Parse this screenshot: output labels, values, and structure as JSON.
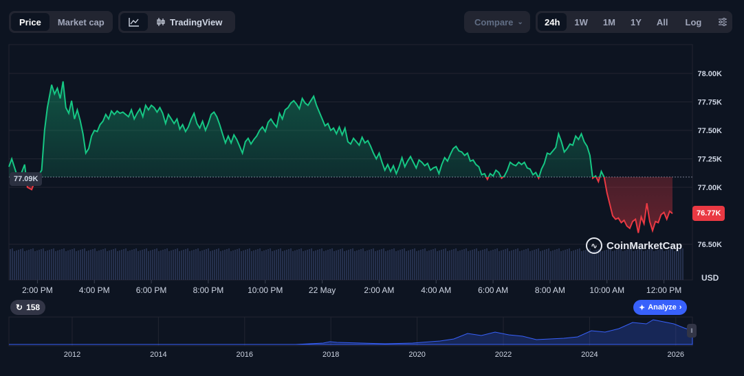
{
  "toolbar": {
    "price_label": "Price",
    "marketcap_label": "Market cap",
    "tradingview_label": "TradingView",
    "compare_label": "Compare",
    "ranges": [
      "24h",
      "1W",
      "1M",
      "1Y",
      "All"
    ],
    "active_range": "24h",
    "log_label": "Log"
  },
  "tags": {
    "open_price": "77.09K",
    "last_price": "76.77K"
  },
  "watermark": "CoinMarketCap",
  "currency": "USD",
  "badge_count": "158",
  "analyze_label": "Analyze",
  "colors": {
    "up": "#16c784",
    "down": "#ea3943",
    "accent": "#3861fb"
  },
  "chart_data": {
    "type": "line",
    "title": "",
    "xlabel": "",
    "ylabel": "",
    "ylim": [
      76400,
      78200
    ],
    "baseline": 77090,
    "yticks": [
      76500,
      77000,
      77250,
      77500,
      77750,
      78000
    ],
    "ytick_labels": [
      "76.50K",
      "77.00K",
      "77.25K",
      "77.50K",
      "77.75K",
      "78.00K"
    ],
    "xticks": [
      {
        "t": 14.0,
        "label": "2:00 PM"
      },
      {
        "t": 16.0,
        "label": "4:00 PM"
      },
      {
        "t": 18.0,
        "label": "6:00 PM"
      },
      {
        "t": 20.0,
        "label": "8:00 PM"
      },
      {
        "t": 22.0,
        "label": "10:00 PM"
      },
      {
        "t": 24.0,
        "label": "22 May"
      },
      {
        "t": 26.0,
        "label": "2:00 AM"
      },
      {
        "t": 28.0,
        "label": "4:00 AM"
      },
      {
        "t": 30.0,
        "label": "6:00 AM"
      },
      {
        "t": 32.0,
        "label": "8:00 AM"
      },
      {
        "t": 34.0,
        "label": "10:00 AM"
      },
      {
        "t": 36.0,
        "label": "12:00 PM"
      }
    ],
    "xlim": [
      13.0,
      37.0
    ],
    "series": [
      {
        "values": [
          [
            13.0,
            77180
          ],
          [
            13.1,
            77250
          ],
          [
            13.25,
            77130
          ],
          [
            13.4,
            77100
          ],
          [
            13.55,
            77200
          ],
          [
            13.65,
            77000
          ],
          [
            13.8,
            76980
          ],
          [
            13.9,
            77050
          ],
          [
            14.05,
            77110
          ],
          [
            14.15,
            77150
          ],
          [
            14.25,
            77500
          ],
          [
            14.35,
            77700
          ],
          [
            14.5,
            77900
          ],
          [
            14.6,
            77820
          ],
          [
            14.7,
            77870
          ],
          [
            14.8,
            77780
          ],
          [
            14.9,
            77930
          ],
          [
            15.0,
            77700
          ],
          [
            15.1,
            77650
          ],
          [
            15.2,
            77760
          ],
          [
            15.3,
            77600
          ],
          [
            15.4,
            77680
          ],
          [
            15.5,
            77590
          ],
          [
            15.6,
            77470
          ],
          [
            15.7,
            77300
          ],
          [
            15.8,
            77340
          ],
          [
            15.9,
            77450
          ],
          [
            16.0,
            77500
          ],
          [
            16.1,
            77490
          ],
          [
            16.2,
            77550
          ],
          [
            16.3,
            77580
          ],
          [
            16.4,
            77640
          ],
          [
            16.5,
            77600
          ],
          [
            16.6,
            77670
          ],
          [
            16.7,
            77640
          ],
          [
            16.8,
            77670
          ],
          [
            16.9,
            77650
          ],
          [
            17.0,
            77660
          ],
          [
            17.1,
            77640
          ],
          [
            17.2,
            77620
          ],
          [
            17.3,
            77680
          ],
          [
            17.4,
            77600
          ],
          [
            17.5,
            77650
          ],
          [
            17.6,
            77690
          ],
          [
            17.7,
            77620
          ],
          [
            17.8,
            77720
          ],
          [
            17.9,
            77680
          ],
          [
            18.0,
            77720
          ],
          [
            18.1,
            77700
          ],
          [
            18.2,
            77660
          ],
          [
            18.3,
            77700
          ],
          [
            18.4,
            77650
          ],
          [
            18.5,
            77560
          ],
          [
            18.6,
            77640
          ],
          [
            18.7,
            77600
          ],
          [
            18.8,
            77560
          ],
          [
            18.9,
            77600
          ],
          [
            19.0,
            77510
          ],
          [
            19.1,
            77550
          ],
          [
            19.2,
            77490
          ],
          [
            19.3,
            77530
          ],
          [
            19.4,
            77600
          ],
          [
            19.5,
            77650
          ],
          [
            19.6,
            77560
          ],
          [
            19.7,
            77520
          ],
          [
            19.8,
            77580
          ],
          [
            19.9,
            77500
          ],
          [
            20.0,
            77560
          ],
          [
            20.1,
            77640
          ],
          [
            20.2,
            77660
          ],
          [
            20.3,
            77620
          ],
          [
            20.4,
            77550
          ],
          [
            20.5,
            77470
          ],
          [
            20.6,
            77390
          ],
          [
            20.7,
            77450
          ],
          [
            20.8,
            77390
          ],
          [
            20.9,
            77460
          ],
          [
            21.0,
            77420
          ],
          [
            21.1,
            77360
          ],
          [
            21.2,
            77300
          ],
          [
            21.3,
            77400
          ],
          [
            21.4,
            77430
          ],
          [
            21.5,
            77380
          ],
          [
            21.6,
            77420
          ],
          [
            21.7,
            77450
          ],
          [
            21.8,
            77500
          ],
          [
            21.9,
            77530
          ],
          [
            22.0,
            77490
          ],
          [
            22.1,
            77570
          ],
          [
            22.2,
            77600
          ],
          [
            22.3,
            77560
          ],
          [
            22.4,
            77530
          ],
          [
            22.5,
            77650
          ],
          [
            22.6,
            77600
          ],
          [
            22.7,
            77680
          ],
          [
            22.8,
            77700
          ],
          [
            22.9,
            77740
          ],
          [
            23.0,
            77760
          ],
          [
            23.1,
            77730
          ],
          [
            23.2,
            77690
          ],
          [
            23.3,
            77780
          ],
          [
            23.4,
            77740
          ],
          [
            23.5,
            77720
          ],
          [
            23.6,
            77760
          ],
          [
            23.7,
            77800
          ],
          [
            23.8,
            77720
          ],
          [
            23.9,
            77660
          ],
          [
            24.0,
            77600
          ],
          [
            24.1,
            77540
          ],
          [
            24.2,
            77560
          ],
          [
            24.3,
            77500
          ],
          [
            24.4,
            77520
          ],
          [
            24.5,
            77470
          ],
          [
            24.6,
            77530
          ],
          [
            24.7,
            77460
          ],
          [
            24.8,
            77520
          ],
          [
            24.9,
            77400
          ],
          [
            25.0,
            77380
          ],
          [
            25.1,
            77430
          ],
          [
            25.2,
            77400
          ],
          [
            25.3,
            77370
          ],
          [
            25.4,
            77440
          ],
          [
            25.5,
            77390
          ],
          [
            25.6,
            77410
          ],
          [
            25.7,
            77360
          ],
          [
            25.8,
            77300
          ],
          [
            25.9,
            77250
          ],
          [
            26.0,
            77300
          ],
          [
            26.1,
            77220
          ],
          [
            26.2,
            77150
          ],
          [
            26.3,
            77200
          ],
          [
            26.4,
            77140
          ],
          [
            26.5,
            77190
          ],
          [
            26.6,
            77120
          ],
          [
            26.7,
            77180
          ],
          [
            26.8,
            77260
          ],
          [
            26.9,
            77180
          ],
          [
            27.0,
            77230
          ],
          [
            27.1,
            77270
          ],
          [
            27.2,
            77220
          ],
          [
            27.3,
            77170
          ],
          [
            27.4,
            77240
          ],
          [
            27.5,
            77220
          ],
          [
            27.6,
            77190
          ],
          [
            27.7,
            77210
          ],
          [
            27.8,
            77150
          ],
          [
            27.9,
            77170
          ],
          [
            28.0,
            77180
          ],
          [
            28.1,
            77120
          ],
          [
            28.2,
            77200
          ],
          [
            28.3,
            77260
          ],
          [
            28.4,
            77230
          ],
          [
            28.5,
            77290
          ],
          [
            28.6,
            77340
          ],
          [
            28.7,
            77360
          ],
          [
            28.8,
            77320
          ],
          [
            28.9,
            77310
          ],
          [
            29.0,
            77280
          ],
          [
            29.1,
            77300
          ],
          [
            29.2,
            77230
          ],
          [
            29.3,
            77240
          ],
          [
            29.4,
            77200
          ],
          [
            29.5,
            77180
          ],
          [
            29.6,
            77110
          ],
          [
            29.7,
            77120
          ],
          [
            29.8,
            77070
          ],
          [
            29.9,
            77120
          ],
          [
            30.0,
            77100
          ],
          [
            30.1,
            77150
          ],
          [
            30.2,
            77130
          ],
          [
            30.3,
            77080
          ],
          [
            30.4,
            77100
          ],
          [
            30.5,
            77150
          ],
          [
            30.6,
            77220
          ],
          [
            30.7,
            77200
          ],
          [
            30.8,
            77190
          ],
          [
            30.9,
            77220
          ],
          [
            31.0,
            77200
          ],
          [
            31.1,
            77220
          ],
          [
            31.2,
            77170
          ],
          [
            31.3,
            77160
          ],
          [
            31.4,
            77110
          ],
          [
            31.5,
            77130
          ],
          [
            31.6,
            77080
          ],
          [
            31.7,
            77160
          ],
          [
            31.8,
            77210
          ],
          [
            31.9,
            77300
          ],
          [
            32.0,
            77290
          ],
          [
            32.1,
            77320
          ],
          [
            32.2,
            77350
          ],
          [
            32.3,
            77470
          ],
          [
            32.4,
            77400
          ],
          [
            32.5,
            77310
          ],
          [
            32.6,
            77340
          ],
          [
            32.7,
            77380
          ],
          [
            32.8,
            77370
          ],
          [
            32.9,
            77450
          ],
          [
            33.0,
            77420
          ],
          [
            33.1,
            77470
          ],
          [
            33.2,
            77400
          ],
          [
            33.3,
            77360
          ],
          [
            33.4,
            77280
          ],
          [
            33.5,
            77080
          ],
          [
            33.6,
            77100
          ],
          [
            33.7,
            77050
          ],
          [
            33.8,
            77140
          ],
          [
            33.9,
            77090
          ],
          [
            34.0,
            76950
          ],
          [
            34.1,
            76850
          ],
          [
            34.2,
            76750
          ],
          [
            34.3,
            76720
          ],
          [
            34.4,
            76730
          ],
          [
            34.5,
            76690
          ],
          [
            34.6,
            76710
          ],
          [
            34.7,
            76660
          ],
          [
            34.8,
            76640
          ],
          [
            34.9,
            76700
          ],
          [
            35.0,
            76720
          ],
          [
            35.1,
            76600
          ],
          [
            35.2,
            76740
          ],
          [
            35.3,
            76680
          ],
          [
            35.4,
            76860
          ],
          [
            35.5,
            76700
          ],
          [
            35.6,
            76620
          ],
          [
            35.7,
            76700
          ],
          [
            35.8,
            76690
          ],
          [
            35.9,
            76760
          ],
          [
            36.0,
            76780
          ],
          [
            36.1,
            76720
          ],
          [
            36.2,
            76790
          ],
          [
            36.3,
            76770
          ]
        ]
      }
    ],
    "overview": {
      "xticks": [
        "2012",
        "2014",
        "2016",
        "2018",
        "2020",
        "2022",
        "2024",
        "2026"
      ]
    }
  }
}
